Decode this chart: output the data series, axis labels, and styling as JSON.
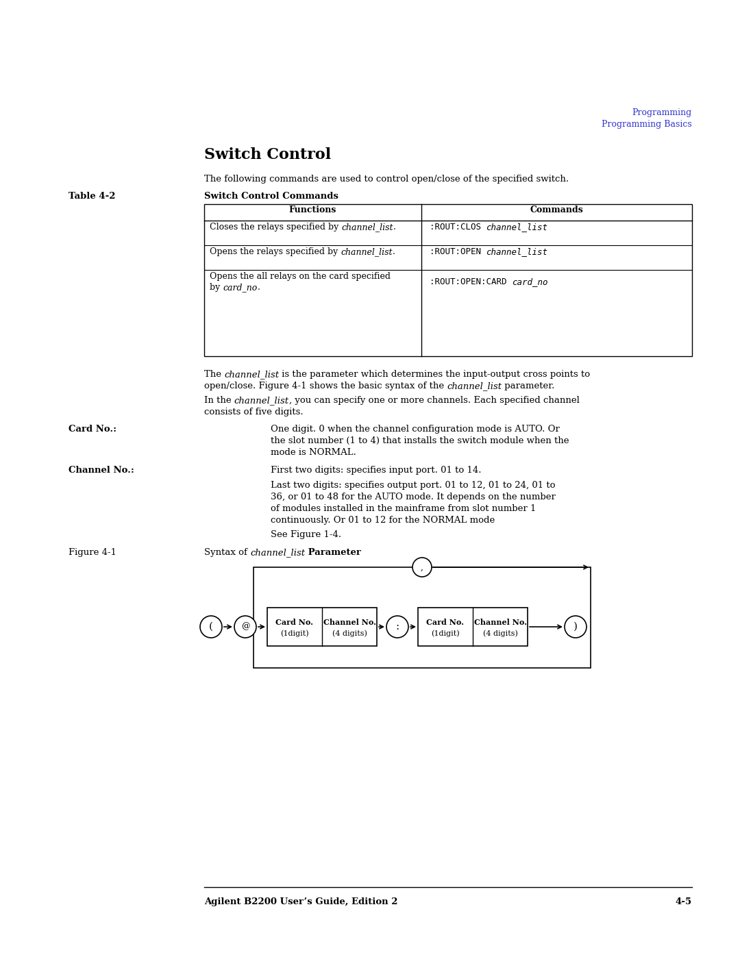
{
  "bg_color": "#ffffff",
  "page_width": 10.8,
  "page_height": 13.97,
  "dpi": 100,
  "header_text1": "Programming",
  "header_text2": "Programming Basics",
  "header_color": "#3333cc",
  "title": "Switch Control",
  "intro_text": "The following commands are used to control open/close of the specified switch.",
  "table_label": "Table 4-2",
  "table_caption": "Switch Control Commands",
  "table_header_functions": "Functions",
  "table_header_commands": "Commands",
  "footer_text_left": "Agilent B2200 User’s Guide, Edition 2",
  "footer_text_right": "4-5"
}
